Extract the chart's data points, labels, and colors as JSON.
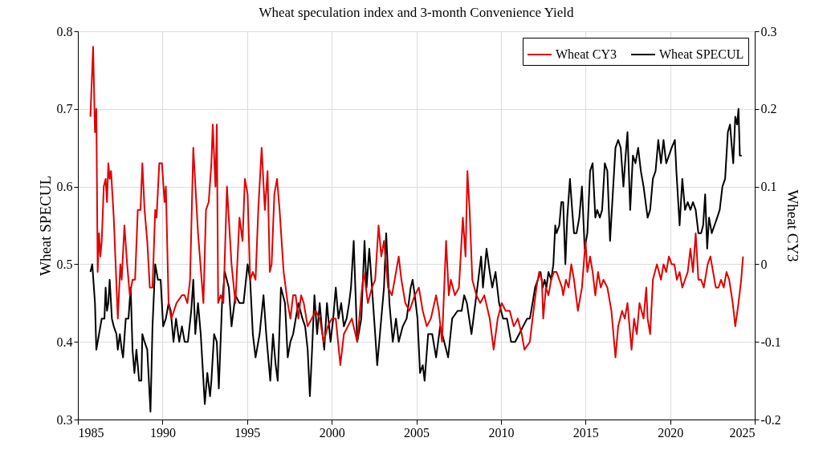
{
  "chart_data": {
    "type": "line",
    "title": "Wheat speculation index and 3-month Convenience Yield",
    "ylabel": "Wheat SPECUL",
    "y2label": "Wheat CY3",
    "xlim": [
      1985,
      2025
    ],
    "xticks": [
      1985,
      1990,
      1995,
      2000,
      2005,
      2010,
      2015,
      2020,
      2025
    ],
    "ylim": [
      0.3,
      0.8
    ],
    "yticks": [
      0.3,
      0.4,
      0.5,
      0.6,
      0.7,
      0.8
    ],
    "y2lim": [
      -0.2,
      0.3
    ],
    "y2ticks": [
      -0.2,
      -0.1,
      0,
      0.1,
      0.2,
      0.3
    ],
    "grid": true,
    "legend": "top right",
    "series": [
      {
        "name": "Wheat CY3",
        "color": "#e00000",
        "axis": "y2",
        "x": [
          1985.74,
          1985.9,
          1986.01,
          1986.09,
          1986.17,
          1986.25,
          1986.33,
          1986.41,
          1986.53,
          1986.64,
          1986.72,
          1986.8,
          1986.88,
          1986.96,
          1987.12,
          1987.36,
          1987.51,
          1987.59,
          1987.75,
          1987.91,
          1988.07,
          1988.23,
          1988.38,
          1988.54,
          1988.7,
          1988.81,
          1988.94,
          1989.1,
          1989.25,
          1989.41,
          1989.57,
          1989.65,
          1989.81,
          1989.97,
          1990.12,
          1990.2,
          1990.36,
          1990.52,
          1990.68,
          1990.83,
          1991.15,
          1991.31,
          1991.47,
          1991.63,
          1991.82,
          1992.1,
          1992.42,
          1992.57,
          1992.73,
          1992.89,
          1992.97,
          1993.13,
          1993.21,
          1993.29,
          1993.44,
          1993.6,
          1993.81,
          1994.08,
          1994.31,
          1994.55,
          1994.73,
          1994.87,
          1995.03,
          1995.18,
          1995.34,
          1995.5,
          1995.66,
          1995.86,
          1996.05,
          1996.21,
          1996.34,
          1996.45,
          1996.61,
          1996.77,
          1996.92,
          1997.16,
          1997.4,
          1997.56,
          1997.72,
          1997.87,
          1998.03,
          1998.19,
          1998.35,
          1998.58,
          1999.06,
          1999.29,
          1999.53,
          1999.77,
          2000.01,
          2000.24,
          2000.51,
          2000.72,
          2000.95,
          2001.19,
          2001.51,
          2001.75,
          2001.9,
          2002.14,
          2002.38,
          2002.57,
          2002.77,
          2002.93,
          2003.09,
          2003.33,
          2003.56,
          2003.8,
          2003.96,
          2004.12,
          2004.35,
          2004.59,
          2004.75,
          2004.91,
          2005.15,
          2005.38,
          2005.62,
          2005.86,
          2006.17,
          2006.33,
          2006.52,
          2006.76,
          2006.92,
          2007.04,
          2007.28,
          2007.52,
          2007.75,
          2007.91,
          2008.02,
          2008.15,
          2008.31,
          2008.55,
          2008.78,
          2009.02,
          2009.34,
          2009.57,
          2009.81,
          2010.05,
          2010.28,
          2010.52,
          2010.76,
          2011,
          2011.23,
          2011.39,
          2011.71,
          2011.87,
          2012.1,
          2012.26,
          2012.42,
          2012.5,
          2012.66,
          2012.81,
          2012.97,
          2013.13,
          2013.29,
          2013.45,
          2013.61,
          2013.68,
          2013.84,
          2014,
          2014.16,
          2014.32,
          2014.55,
          2014.79,
          2015,
          2015.11,
          2015.27,
          2015.42,
          2015.58,
          2015.74,
          2015.9,
          2016.06,
          2016.29,
          2016.53,
          2016.77,
          2016.93,
          2017.16,
          2017.32,
          2017.48,
          2017.72,
          2017.87,
          2018.03,
          2018.19,
          2018.43,
          2018.59,
          2018.67,
          2018.82,
          2018.98,
          2019.22,
          2019.46,
          2019.61,
          2019.77,
          2019.93,
          2020.09,
          2020.25,
          2020.4,
          2020.56,
          2020.72,
          2020.88,
          2021.04,
          2021.2,
          2021.35,
          2021.51,
          2021.67,
          2021.83,
          2021.99,
          2022.22,
          2022.38,
          2022.54,
          2022.7,
          2022.86,
          2023.01,
          2023.17,
          2023.33,
          2023.49,
          2023.7,
          2023.85,
          2024.04,
          2024.2,
          2024.31
        ],
        "values": [
          0.19,
          0.28,
          0.17,
          0.2,
          -0.01,
          0.04,
          0.01,
          0.03,
          0.1,
          0.11,
          0.08,
          0.13,
          0.11,
          0.12,
          0.06,
          -0.07,
          0,
          -0.02,
          0.05,
          0,
          -0.04,
          -0.02,
          -0.02,
          0.07,
          0.07,
          0.13,
          0.07,
          0.03,
          -0.03,
          -0.03,
          0.07,
          0.06,
          0.13,
          0.13,
          0.08,
          0.1,
          -0.05,
          -0.07,
          -0.06,
          -0.05,
          -0.04,
          -0.04,
          -0.05,
          -0.02,
          0.15,
          0.04,
          -0.05,
          0.07,
          0.08,
          0.13,
          0.18,
          0.1,
          0.18,
          -0.05,
          -0.04,
          -0.05,
          0.1,
          0,
          -0.05,
          0.06,
          0.03,
          0.11,
          0.09,
          -0.02,
          -0.01,
          -0.02,
          0.07,
          0.15,
          0.07,
          0.12,
          -0.01,
          0,
          0.09,
          0.11,
          0.07,
          -0.01,
          -0.05,
          -0.07,
          -0.04,
          -0.04,
          -0.07,
          -0.04,
          -0.05,
          -0.08,
          -0.06,
          -0.07,
          -0.1,
          -0.08,
          -0.07,
          -0.07,
          -0.13,
          -0.09,
          -0.08,
          -0.07,
          -0.1,
          -0.04,
          -0.01,
          -0.05,
          -0.03,
          -0.02,
          0.05,
          0.01,
          0.03,
          -0.03,
          -0.04,
          -0.01,
          0.01,
          -0.02,
          -0.05,
          -0.06,
          -0.05,
          -0.04,
          -0.03,
          -0.06,
          -0.08,
          -0.07,
          -0.04,
          -0.06,
          -0.1,
          0.03,
          -0.04,
          -0.02,
          -0.04,
          -0.03,
          0.06,
          0.01,
          0.12,
          0.07,
          -0.02,
          -0.04,
          -0.05,
          -0.04,
          -0.07,
          -0.11,
          -0.07,
          -0.05,
          -0.06,
          -0.06,
          -0.08,
          -0.07,
          -0.09,
          -0.11,
          -0.1,
          -0.07,
          -0.03,
          -0.01,
          -0.02,
          -0.07,
          -0.03,
          -0.04,
          -0.02,
          -0.01,
          -0.01,
          -0.02,
          -0.03,
          -0.04,
          -0.02,
          -0.03,
          0,
          -0.02,
          -0.06,
          -0.03,
          0.03,
          -0.01,
          0.01,
          -0.01,
          -0.04,
          -0.01,
          -0.03,
          -0.02,
          -0.03,
          -0.06,
          -0.12,
          -0.08,
          -0.06,
          -0.07,
          -0.05,
          -0.11,
          -0.07,
          -0.09,
          -0.05,
          -0.07,
          -0.03,
          -0.07,
          -0.09,
          -0.02,
          0,
          -0.02,
          0,
          -0.01,
          0.01,
          0,
          0,
          -0.02,
          -0.01,
          -0.03,
          -0.02,
          -0.01,
          0.02,
          -0.01,
          0.04,
          -0.02,
          -0.02,
          -0.03,
          0,
          0.01,
          -0.01,
          -0.03,
          -0.03,
          -0.02,
          -0.03,
          -0.01,
          -0.02,
          -0.05,
          -0.08,
          -0.05,
          -0.02,
          0.01
        ]
      },
      {
        "name": "Wheat SPECUL",
        "color": "#000000",
        "x": [
          1985.74,
          1985.85,
          1986.01,
          1986.09,
          1986.25,
          1986.41,
          1986.57,
          1986.64,
          1986.72,
          1986.8,
          1986.88,
          1987.01,
          1987.12,
          1987.28,
          1987.36,
          1987.48,
          1987.59,
          1987.67,
          1987.83,
          1987.99,
          1988.12,
          1988.23,
          1988.34,
          1988.46,
          1988.62,
          1988.75,
          1988.81,
          1988.94,
          1989.1,
          1989.29,
          1989.41,
          1989.57,
          1989.73,
          1989.89,
          1990.04,
          1990.2,
          1990.36,
          1990.49,
          1990.65,
          1990.8,
          1990.99,
          1991.15,
          1991.31,
          1991.5,
          1991.7,
          1991.82,
          1991.94,
          1992.1,
          1992.26,
          1992.5,
          1992.65,
          1992.81,
          1992.89,
          1993.05,
          1993.21,
          1993.33,
          1993.52,
          1993.68,
          1993.92,
          1994.08,
          1994.31,
          1994.55,
          1994.79,
          1995.03,
          1995.18,
          1995.34,
          1995.5,
          1995.74,
          1995.97,
          1996.13,
          1996.37,
          1996.53,
          1996.69,
          1996.81,
          1997,
          1997.24,
          1997.4,
          1997.56,
          1997.72,
          1998.03,
          1998.27,
          1998.43,
          1998.58,
          1998.71,
          1998.82,
          1998.98,
          1999.14,
          1999.29,
          1999.41,
          1999.56,
          1999.72,
          1999.93,
          2000.09,
          2000.24,
          2000.4,
          2000.56,
          2000.72,
          2000.88,
          2001.03,
          2001.14,
          2001.3,
          2001.51,
          2001.75,
          2001.94,
          2002.06,
          2002.22,
          2002.38,
          2002.57,
          2002.69,
          2002.85,
          2003.09,
          2003.22,
          2003.41,
          2003.61,
          2003.8,
          2003.96,
          2004.2,
          2004.43,
          2004.67,
          2004.78,
          2004.91,
          2005.07,
          2005.22,
          2005.38,
          2005.49,
          2005.7,
          2005.94,
          2006.17,
          2006.41,
          2006.65,
          2006.88,
          2007.12,
          2007.44,
          2007.68,
          2007.83,
          2007.99,
          2008.26,
          2008.55,
          2008.83,
          2008.94,
          2009.15,
          2009.34,
          2009.49,
          2009.68,
          2009.89,
          2010.13,
          2010.36,
          2010.6,
          2010.84,
          2011.08,
          2011.31,
          2011.55,
          2011.71,
          2011.87,
          2012.02,
          2012.18,
          2012.34,
          2012.47,
          2012.58,
          2012.69,
          2012.81,
          2012.97,
          2013.1,
          2013.21,
          2013.29,
          2013.45,
          2013.57,
          2013.68,
          2013.81,
          2013.92,
          2014.08,
          2014.21,
          2014.32,
          2014.47,
          2014.63,
          2014.79,
          2014.95,
          2015.11,
          2015.27,
          2015.42,
          2015.58,
          2015.69,
          2015.85,
          2015.98,
          2016.14,
          2016.29,
          2016.45,
          2016.61,
          2016.77,
          2016.93,
          2017.08,
          2017.24,
          2017.37,
          2017.48,
          2017.64,
          2017.8,
          2017.95,
          2018.11,
          2018.27,
          2018.43,
          2018.67,
          2018.82,
          2018.98,
          2019.14,
          2019.3,
          2019.46,
          2019.61,
          2019.77,
          2019.93,
          2020.09,
          2020.28,
          2020.37,
          2020.56,
          2020.72,
          2020.88,
          2021.04,
          2021.2,
          2021.35,
          2021.51,
          2021.67,
          2021.83,
          2021.95,
          2022.07,
          2022.19,
          2022.3,
          2022.46,
          2022.62,
          2022.78,
          2022.93,
          2023.09,
          2023.25,
          2023.41,
          2023.54,
          2023.65,
          2023.73,
          2023.85,
          2023.96,
          2024.04,
          2024.12,
          2024.23
        ],
        "values": [
          0.49,
          0.5,
          0.45,
          0.39,
          0.41,
          0.43,
          0.43,
          0.47,
          0.44,
          0.45,
          0.48,
          0.43,
          0.42,
          0.41,
          0.39,
          0.41,
          0.39,
          0.38,
          0.43,
          0.43,
          0.47,
          0.39,
          0.36,
          0.39,
          0.35,
          0.35,
          0.41,
          0.4,
          0.39,
          0.31,
          0.42,
          0.5,
          0.48,
          0.48,
          0.42,
          0.43,
          0.45,
          0.44,
          0.4,
          0.43,
          0.4,
          0.42,
          0.4,
          0.4,
          0.44,
          0.48,
          0.41,
          0.45,
          0.41,
          0.32,
          0.36,
          0.33,
          0.35,
          0.41,
          0.4,
          0.34,
          0.45,
          0.49,
          0.47,
          0.42,
          0.46,
          0.45,
          0.45,
          0.5,
          0.48,
          0.41,
          0.38,
          0.41,
          0.46,
          0.41,
          0.35,
          0.41,
          0.37,
          0.35,
          0.47,
          0.45,
          0.38,
          0.4,
          0.41,
          0.45,
          0.43,
          0.42,
          0.39,
          0.33,
          0.38,
          0.46,
          0.41,
          0.45,
          0.42,
          0.39,
          0.45,
          0.4,
          0.43,
          0.47,
          0.43,
          0.45,
          0.42,
          0.43,
          0.45,
          0.47,
          0.53,
          0.4,
          0.43,
          0.53,
          0.47,
          0.52,
          0.47,
          0.41,
          0.37,
          0.41,
          0.47,
          0.54,
          0.45,
          0.4,
          0.43,
          0.4,
          0.42,
          0.43,
          0.47,
          0.48,
          0.46,
          0.43,
          0.36,
          0.37,
          0.35,
          0.41,
          0.41,
          0.38,
          0.42,
          0.4,
          0.38,
          0.43,
          0.44,
          0.44,
          0.46,
          0.45,
          0.41,
          0.46,
          0.51,
          0.47,
          0.52,
          0.49,
          0.47,
          0.49,
          0.45,
          0.43,
          0.43,
          0.4,
          0.4,
          0.41,
          0.42,
          0.43,
          0.43,
          0.45,
          0.47,
          0.48,
          0.49,
          0.47,
          0.48,
          0.47,
          0.49,
          0.48,
          0.5,
          0.55,
          0.54,
          0.55,
          0.58,
          0.58,
          0.5,
          0.56,
          0.61,
          0.57,
          0.54,
          0.54,
          0.56,
          0.6,
          0.52,
          0.54,
          0.62,
          0.63,
          0.56,
          0.57,
          0.56,
          0.57,
          0.63,
          0.62,
          0.53,
          0.59,
          0.65,
          0.66,
          0.65,
          0.6,
          0.64,
          0.67,
          0.57,
          0.64,
          0.63,
          0.65,
          0.62,
          0.6,
          0.56,
          0.57,
          0.61,
          0.62,
          0.66,
          0.63,
          0.66,
          0.63,
          0.64,
          0.65,
          0.66,
          0.62,
          0.55,
          0.61,
          0.57,
          0.58,
          0.57,
          0.58,
          0.57,
          0.54,
          0.54,
          0.55,
          0.59,
          0.52,
          0.56,
          0.54,
          0.55,
          0.56,
          0.57,
          0.6,
          0.61,
          0.67,
          0.68,
          0.65,
          0.63,
          0.69,
          0.68,
          0.7,
          0.64,
          0.64
        ]
      }
    ]
  }
}
